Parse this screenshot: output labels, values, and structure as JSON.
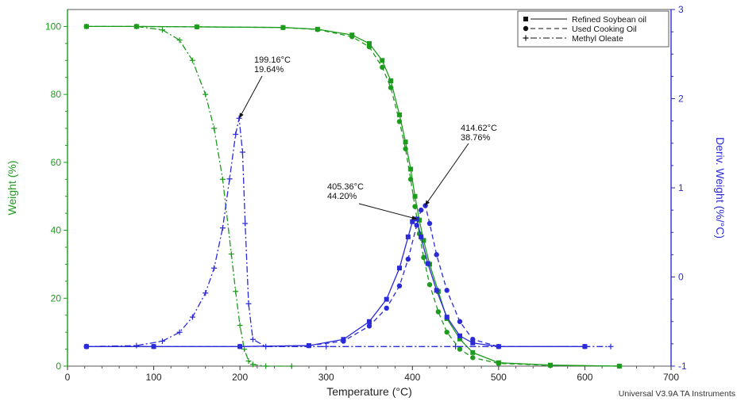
{
  "chart_data": {
    "type": "line",
    "xlabel": "Temperature (°C)",
    "ylabel_left": "Weight (%)",
    "ylabel_right": "Deriv. Weight (%/°C)",
    "xlim": [
      0,
      700
    ],
    "ylim_left": [
      0,
      105
    ],
    "ylim_right": [
      -1,
      3
    ],
    "xticks": [
      0,
      100,
      200,
      300,
      400,
      500,
      600,
      700
    ],
    "yticks_left": [
      0,
      20,
      40,
      60,
      80,
      100
    ],
    "yticks_right": [
      -1,
      0,
      1,
      2,
      3
    ],
    "colors": {
      "weight": "#1d9b1d",
      "deriv": "#2a2ad8"
    },
    "legend_position": "top-right",
    "legend": [
      "Refined Soybean oil",
      "Used Cooking Oil",
      "Methyl Oleate"
    ],
    "series": [
      {
        "name": "Refined Soybean oil",
        "axis": "left",
        "marker": "square",
        "dash": "solid",
        "x": [
          22,
          80,
          150,
          250,
          290,
          330,
          350,
          365,
          375,
          385,
          392,
          398,
          403,
          408,
          413,
          420,
          430,
          440,
          455,
          470,
          500,
          560,
          640
        ],
        "y": [
          100,
          100,
          99.9,
          99.7,
          99.2,
          97.5,
          95,
          90,
          84,
          74,
          66,
          58,
          50,
          43,
          37,
          30,
          22,
          14,
          8,
          4,
          1,
          0.3,
          0
        ]
      },
      {
        "name": "Used Cooking Oil",
        "axis": "left",
        "marker": "circle",
        "dash": "dashed",
        "x": [
          22,
          80,
          150,
          250,
          290,
          330,
          350,
          365,
          375,
          385,
          392,
          398,
          403,
          408,
          413,
          420,
          430,
          440,
          455,
          470,
          500,
          560,
          640
        ],
        "y": [
          100,
          100,
          99.9,
          99.7,
          99.1,
          97,
          94,
          88,
          82,
          72,
          64,
          55,
          47,
          39,
          32,
          24,
          16,
          10,
          5,
          2.5,
          0.8,
          0.2,
          0
        ]
      },
      {
        "name": "Methyl Oleate",
        "axis": "left",
        "marker": "plus",
        "dash": "dashdot",
        "x": [
          22,
          80,
          110,
          130,
          145,
          160,
          170,
          180,
          190,
          195,
          200,
          205,
          210,
          215,
          230,
          260
        ],
        "y": [
          100,
          100,
          99,
          96,
          90,
          80,
          70,
          55,
          33,
          22,
          12,
          5,
          1.5,
          0.5,
          0,
          0
        ]
      },
      {
        "name": "Refined Soybean oil",
        "axis": "right",
        "marker": "square",
        "dash": "solid",
        "x": [
          22,
          100,
          200,
          280,
          320,
          350,
          370,
          385,
          395,
          400,
          405,
          410,
          418,
          428,
          440,
          455,
          470,
          500,
          600
        ],
        "y": [
          -0.78,
          -0.78,
          -0.78,
          -0.77,
          -0.7,
          -0.5,
          -0.25,
          0.1,
          0.45,
          0.62,
          0.65,
          0.45,
          0.15,
          -0.15,
          -0.45,
          -0.66,
          -0.74,
          -0.78,
          -0.78
        ]
      },
      {
        "name": "Used Cooking Oil",
        "axis": "right",
        "marker": "circle",
        "dash": "dashed",
        "x": [
          22,
          100,
          200,
          280,
          320,
          350,
          370,
          385,
          395,
          405,
          410,
          415,
          420,
          428,
          440,
          455,
          470,
          500,
          600
        ],
        "y": [
          -0.78,
          -0.78,
          -0.78,
          -0.77,
          -0.72,
          -0.55,
          -0.35,
          -0.1,
          0.2,
          0.58,
          0.75,
          0.8,
          0.6,
          0.25,
          -0.15,
          -0.5,
          -0.7,
          -0.78,
          -0.78
        ]
      },
      {
        "name": "Methyl Oleate",
        "axis": "right",
        "marker": "plus",
        "dash": "dashdot",
        "x": [
          22,
          80,
          110,
          130,
          145,
          160,
          170,
          180,
          188,
          195,
          199,
          203,
          206,
          210,
          215,
          230,
          300,
          450,
          630
        ],
        "y": [
          -0.78,
          -0.77,
          -0.72,
          -0.62,
          -0.45,
          -0.18,
          0.1,
          0.55,
          1.1,
          1.6,
          1.78,
          1.4,
          0.6,
          -0.3,
          -0.7,
          -0.78,
          -0.78,
          -0.78,
          -0.78
        ]
      }
    ],
    "annotations": [
      {
        "line1": "199.16°C",
        "line2": "19.64%",
        "x": 199.16,
        "y_right": 1.78
      },
      {
        "line1": "405.36°C",
        "line2": "44.20%",
        "x": 405.36,
        "y_right": 0.65
      },
      {
        "line1": "414.62°C",
        "line2": "38.76%",
        "x": 414.62,
        "y_right": 0.8
      }
    ],
    "footer": "Universal V3.9A TA Instruments"
  }
}
